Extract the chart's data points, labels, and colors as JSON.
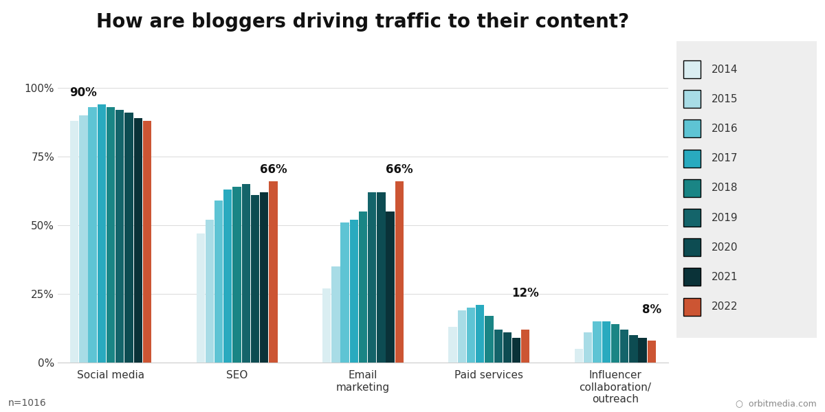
{
  "title": "How are bloggers driving traffic to their content?",
  "years": [
    "2014",
    "2015",
    "2016",
    "2017",
    "2018",
    "2019",
    "2020",
    "2021",
    "2022"
  ],
  "colors": [
    "#daeef2",
    "#a8dce6",
    "#5ec4d4",
    "#29aabf",
    "#1a8585",
    "#14646a",
    "#0d4c52",
    "#0a3238",
    "#cc5533"
  ],
  "categories": [
    "Social media",
    "SEO",
    "Email\nmarketing",
    "Paid services",
    "Influencer\ncollaboration/\noutreach"
  ],
  "data": {
    "Social media": [
      88,
      90,
      93,
      94,
      93,
      92,
      91,
      89,
      88
    ],
    "SEO": [
      47,
      52,
      59,
      63,
      64,
      65,
      61,
      62,
      66
    ],
    "Email\nmarketing": [
      27,
      35,
      51,
      52,
      55,
      62,
      62,
      55,
      66
    ],
    "Paid services": [
      13,
      19,
      20,
      21,
      17,
      12,
      11,
      9,
      12
    ],
    "Influencer\ncollaboration/\noutreach": [
      5,
      11,
      15,
      15,
      14,
      12,
      10,
      9,
      8
    ]
  },
  "annotations": {
    "Social media": {
      "value": "90%",
      "year_idx": 1
    },
    "SEO": {
      "value": "66%",
      "year_idx": 8
    },
    "Email\nmarketing": {
      "value": "66%",
      "year_idx": 8
    },
    "Paid services": {
      "value": "12%",
      "year_idx": 8
    },
    "Influencer\ncollaboration/\noutreach": {
      "value": "8%",
      "year_idx": 8
    }
  },
  "yticks": [
    0,
    25,
    50,
    75,
    100
  ],
  "footnote": "n=1016",
  "watermark": "orbitmedia.com",
  "background_color": "#ffffff"
}
